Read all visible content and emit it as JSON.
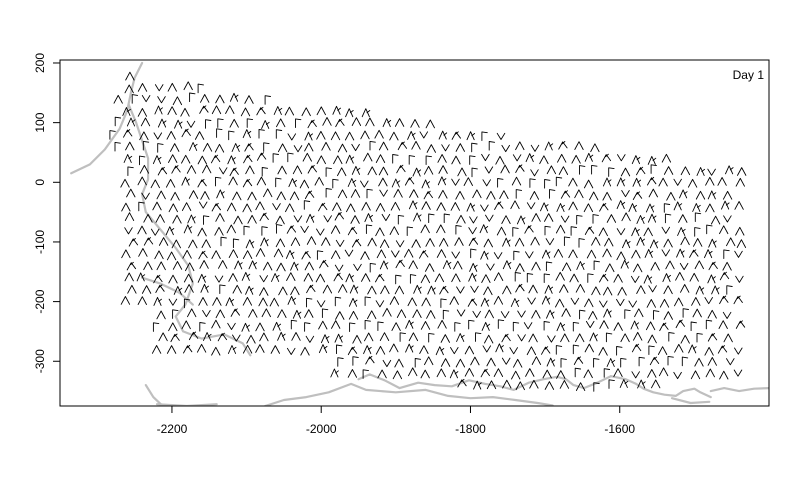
{
  "chart_data": {
    "type": "wind-barb map",
    "panel_label": "Day 1",
    "xlim": [
      -2350,
      -1400
    ],
    "ylim": [
      -375,
      205
    ],
    "x_ticks": [
      -2200,
      -2000,
      -1800,
      -1600
    ],
    "x_tick_labels": [
      "-2200",
      "-2000",
      "-1800",
      "-1600"
    ],
    "y_ticks": [
      200,
      100,
      0,
      -100,
      -200,
      -300
    ],
    "y_tick_labels": [
      "200",
      "100",
      "0",
      "-100",
      "-200",
      "-300"
    ],
    "grid": false,
    "barb_grid": {
      "x_start": -2280,
      "x_end": -1440,
      "x_step": 20,
      "y_start": 180,
      "y_end": -350,
      "y_step": -20
    },
    "coastlines": [
      [
        [
          -2335,
          15
        ],
        [
          -2310,
          30
        ],
        [
          -2290,
          55
        ],
        [
          -2270,
          90
        ],
        [
          -2260,
          120
        ],
        [
          -2255,
          150
        ],
        [
          -2250,
          175
        ],
        [
          -2240,
          200
        ]
      ],
      [
        [
          -2258,
          130
        ],
        [
          -2248,
          100
        ],
        [
          -2240,
          70
        ],
        [
          -2232,
          40
        ],
        [
          -2232,
          5
        ],
        [
          -2240,
          -20
        ],
        [
          -2235,
          -50
        ],
        [
          -2215,
          -80
        ],
        [
          -2195,
          -110
        ],
        [
          -2178,
          -140
        ],
        [
          -2172,
          -170
        ],
        [
          -2182,
          -205
        ],
        [
          -2195,
          -225
        ],
        [
          -2185,
          -250
        ],
        [
          -2160,
          -262
        ],
        [
          -2130,
          -255
        ],
        [
          -2105,
          -270
        ],
        [
          -2095,
          -290
        ]
      ],
      [
        [
          -2240,
          -160
        ],
        [
          -2215,
          -170
        ],
        [
          -2190,
          -185
        ],
        [
          -2172,
          -205
        ]
      ],
      [
        [
          -2235,
          -340
        ],
        [
          -2225,
          -360
        ],
        [
          -2215,
          -372
        ]
      ],
      [
        [
          -2220,
          -372
        ],
        [
          -2180,
          -375
        ],
        [
          -2140,
          -372
        ]
      ],
      [
        [
          -2075,
          -375
        ],
        [
          -2050,
          -365
        ],
        [
          -2020,
          -360
        ],
        [
          -1990,
          -352
        ],
        [
          -1960,
          -338
        ],
        [
          -1940,
          -348
        ],
        [
          -1900,
          -352
        ],
        [
          -1860,
          -348
        ],
        [
          -1830,
          -358
        ],
        [
          -1800,
          -362
        ],
        [
          -1770,
          -360
        ],
        [
          -1740,
          -365
        ],
        [
          -1710,
          -370
        ],
        [
          -1690,
          -374
        ]
      ],
      [
        [
          -1950,
          -330
        ],
        [
          -1935,
          -322
        ],
        [
          -1915,
          -332
        ],
        [
          -1895,
          -345
        ],
        [
          -1870,
          -336
        ],
        [
          -1848,
          -340
        ],
        [
          -1825,
          -342
        ],
        [
          -1802,
          -332
        ],
        [
          -1780,
          -338
        ],
        [
          -1760,
          -342
        ],
        [
          -1742,
          -348
        ],
        [
          -1722,
          -336
        ],
        [
          -1702,
          -330
        ],
        [
          -1684,
          -326
        ],
        [
          -1672,
          -330
        ],
        [
          -1662,
          -340
        ],
        [
          -1648,
          -345
        ],
        [
          -1630,
          -336
        ],
        [
          -1612,
          -325
        ]
      ],
      [
        [
          -1612,
          -325
        ],
        [
          -1592,
          -330
        ],
        [
          -1578,
          -338
        ],
        [
          -1568,
          -346
        ],
        [
          -1555,
          -352
        ],
        [
          -1540,
          -356
        ],
        [
          -1525,
          -358
        ],
        [
          -1515,
          -350
        ],
        [
          -1500,
          -346
        ],
        [
          -1492,
          -352
        ],
        [
          -1478,
          -360
        ]
      ],
      [
        [
          -1530,
          -362
        ],
        [
          -1505,
          -370
        ],
        [
          -1480,
          -368
        ]
      ],
      [
        [
          -1478,
          -350
        ],
        [
          -1460,
          -345
        ],
        [
          -1440,
          -350
        ],
        [
          -1420,
          -346
        ],
        [
          -1400,
          -345
        ]
      ]
    ]
  }
}
